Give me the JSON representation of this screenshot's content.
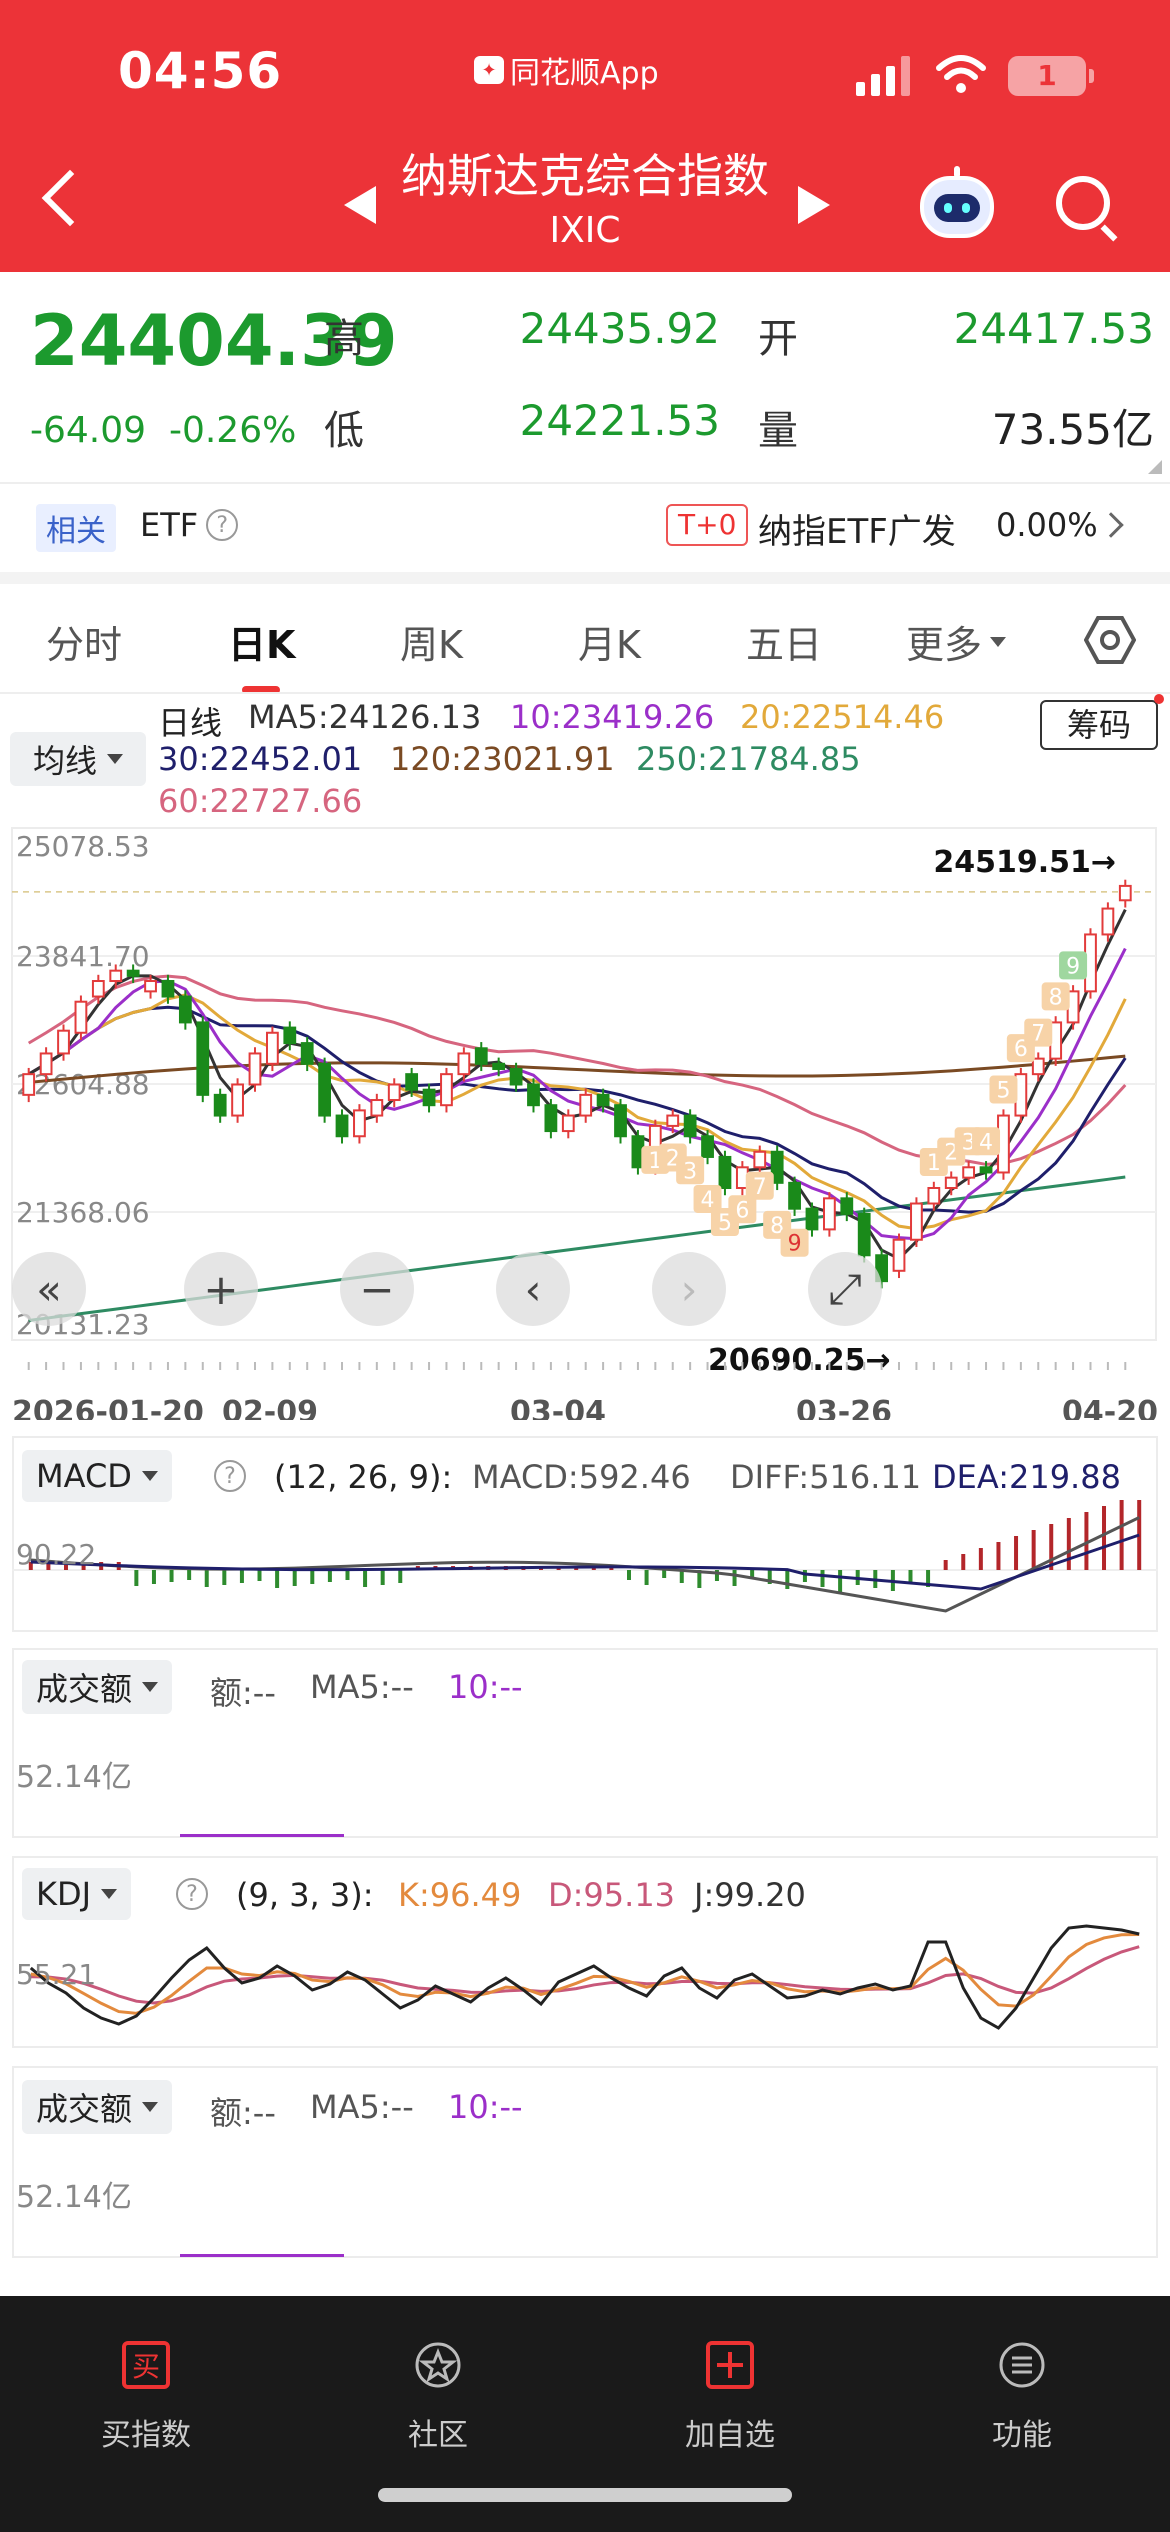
{
  "status_bar": {
    "time": "04:56",
    "app": "同花顺App",
    "battery": "1"
  },
  "header": {
    "title": "纳斯达克综合指数",
    "subtitle": "IXIC"
  },
  "quote": {
    "price": "24404.39",
    "change": "-64.09",
    "change_pct": "-0.26%",
    "high_label": "高",
    "high": "24435.92",
    "open_label": "开",
    "open": "24417.53",
    "low_label": "低",
    "low": "24221.53",
    "volume_label": "量",
    "volume": "73.55亿"
  },
  "etf": {
    "tag": "相关",
    "label": "ETF",
    "trade_tag": "T+0",
    "name": "纳指ETF广发",
    "pct": "0.00%"
  },
  "tabs": [
    "分时",
    "日K",
    "周K",
    "月K",
    "五日",
    "更多"
  ],
  "active_tab": "日K",
  "ma_legend": {
    "selector": "均线",
    "period": "日线",
    "ma5": "MA5:24126.13",
    "ma10": "10:23419.26",
    "ma20": "20:22514.46",
    "ma30": "30:22452.01",
    "ma120": "120:23021.91",
    "ma250": "250:21784.85",
    "ma60": "60:22727.66",
    "chouma": "筹码"
  },
  "colors": {
    "ma5": "#333333",
    "ma10": "#9b2fc9",
    "ma20": "#e2a93a",
    "ma30": "#1f1f6b",
    "ma60": "#d6657f",
    "ma120": "#7a4a23",
    "ma250": "#2e8b62",
    "up": "#e23b3b",
    "down": "#1a8a1a"
  },
  "chart_data": {
    "type": "candlestick",
    "y_labels": [
      "25078.53",
      "23841.70",
      "22604.88",
      "21368.06",
      "20131.23"
    ],
    "ylim": [
      20131.23,
      25078.53
    ],
    "x_labels": [
      "2026-01-20",
      "02-09",
      "03-04",
      "03-26",
      "04-20"
    ],
    "max_marker": "24519.51→",
    "min_marker": "20690.25→",
    "nine_turn_labels": [
      "1",
      "2",
      "3",
      "4",
      "5",
      "6",
      "7",
      "8",
      "9",
      "1",
      "2",
      "3",
      "4",
      "5",
      "6",
      "7",
      "8",
      "9"
    ],
    "candles_close": [
      22700,
      22900,
      23120,
      23400,
      23600,
      23700,
      23650,
      23600,
      23450,
      23200,
      22500,
      22300,
      22600,
      22900,
      23100,
      23000,
      22800,
      22300,
      22100,
      22350,
      22450,
      22600,
      22550,
      22400,
      22700,
      22900,
      22800,
      22750,
      22600,
      22400,
      22150,
      22300,
      22500,
      22400,
      22100,
      21800,
      22200,
      22300,
      22100,
      21900,
      21600,
      21800,
      21950,
      21650,
      21400,
      21200,
      21500,
      21350,
      20950,
      20700,
      21100,
      21450,
      21600,
      21700,
      21800,
      21750,
      22300,
      22700,
      22850,
      23200,
      23500,
      24050,
      24300,
      24519
    ],
    "candles_open": [
      22500,
      22700,
      22900,
      23100,
      23450,
      23600,
      23700,
      23500,
      23600,
      23450,
      23200,
      22500,
      22300,
      22600,
      22800,
      23150,
      23000,
      22800,
      22300,
      22100,
      22300,
      22450,
      22700,
      22550,
      22400,
      22700,
      22950,
      22800,
      22750,
      22600,
      22400,
      22150,
      22300,
      22500,
      22400,
      22100,
      21800,
      22200,
      22300,
      22100,
      21900,
      21600,
      21800,
      21950,
      21650,
      21400,
      21200,
      21500,
      21350,
      20950,
      20800,
      21100,
      21450,
      21600,
      21700,
      21800,
      21750,
      22300,
      22700,
      22850,
      23200,
      23500,
      24050,
      24380
    ]
  },
  "macd": {
    "selector": "MACD",
    "params": "(12, 26, 9):",
    "macd": "MACD:592.46",
    "diff": "DIFF:516.11",
    "dea": "DEA:219.88",
    "axis": "90.22"
  },
  "vol1": {
    "selector": "成交额",
    "e": "额:--",
    "ma5": "MA5:--",
    "ma10": "10:--",
    "axis": "52.14亿"
  },
  "kdj": {
    "selector": "KDJ",
    "params": "(9, 3, 3):",
    "k": "K:96.49",
    "d": "D:95.13",
    "j": "J:99.20",
    "axis": "55.21"
  },
  "vol2": {
    "selector": "成交额",
    "e": "额:--",
    "ma5": "MA5:--",
    "ma10": "10:--",
    "axis": "52.14亿"
  },
  "nav": [
    {
      "label": "买指数",
      "icon": "buy-icon"
    },
    {
      "label": "社区",
      "icon": "community-icon"
    },
    {
      "label": "加自选",
      "icon": "add-watch-icon"
    },
    {
      "label": "功能",
      "icon": "menu-icon"
    }
  ]
}
